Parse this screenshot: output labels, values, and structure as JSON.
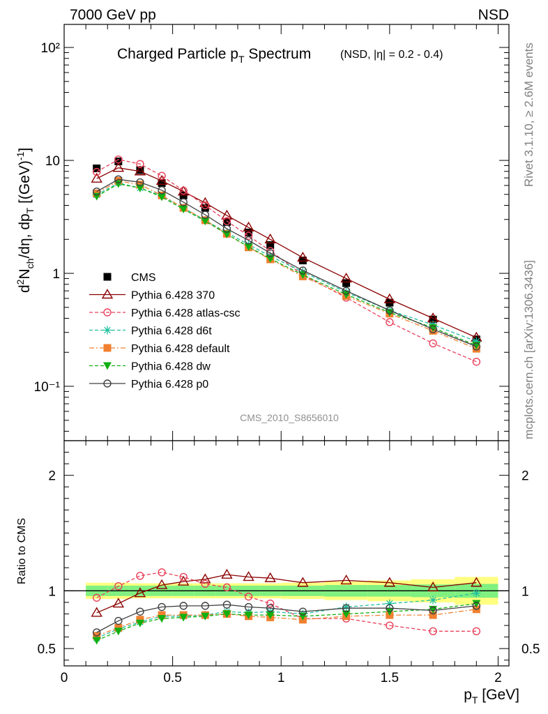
{
  "header": {
    "left": "7000 GeV pp",
    "right": "NSD"
  },
  "side_labels": {
    "top": "Rivet 3.1.10, ≥ 2.6M events",
    "bottom": "mcplots.cern.ch [arXiv:1306.3436]"
  },
  "analysis_id": "CMS_2010_S8656010",
  "chart_data": [
    {
      "type": "line",
      "panel": "main",
      "title": "Charged Particle p",
      "title_sub": "T",
      "title_tail": " Spectrum",
      "subtitle": "(NSD, |η| = 0.2 - 0.4)",
      "ylabel": "d²N_ch/dη, dp_T [(GeV)⁻¹]",
      "yscale": "log",
      "ylim": [
        0.033,
        160
      ],
      "xlim": [
        0,
        2.05
      ],
      "ytick_labels": [
        "10⁻¹",
        "1",
        "10",
        "10²"
      ],
      "x": [
        0.15,
        0.25,
        0.35,
        0.45,
        0.55,
        0.65,
        0.75,
        0.85,
        0.95,
        1.1,
        1.3,
        1.5,
        1.7,
        1.9
      ],
      "series": [
        {
          "name": "CMS",
          "color": "#000000",
          "marker": "square-filled",
          "style": "none",
          "values": [
            8.5,
            9.8,
            8.2,
            6.3,
            4.9,
            3.8,
            2.85,
            2.3,
            1.78,
            1.3,
            0.82,
            0.55,
            0.39,
            0.26
          ]
        },
        {
          "name": "Pythia 6.428 370",
          "color": "#8b0000",
          "marker": "triangle-open",
          "style": "solid",
          "values": [
            6.9,
            8.6,
            8.0,
            6.6,
            5.3,
            4.2,
            3.25,
            2.55,
            2.0,
            1.38,
            0.9,
            0.59,
            0.4,
            0.27
          ]
        },
        {
          "name": "Pythia 6.428 atlas-csc",
          "color": "#e8405a",
          "marker": "circle-open",
          "style": "dashed",
          "values": [
            7.9,
            10.2,
            9.3,
            7.3,
            5.4,
            4.0,
            2.9,
            2.15,
            1.58,
            0.97,
            0.61,
            0.37,
            0.24,
            0.165
          ]
        },
        {
          "name": "Pythia 6.428 d6t",
          "color": "#20c0a0",
          "marker": "star",
          "style": "dashed",
          "values": [
            4.95,
            6.3,
            5.7,
            4.85,
            3.8,
            2.95,
            2.3,
            1.8,
            1.42,
            1.03,
            0.68,
            0.47,
            0.35,
            0.25
          ]
        },
        {
          "name": "Pythia 6.428 default",
          "color": "#f08030",
          "marker": "square-filled",
          "style": "dashdot",
          "values": [
            5.1,
            6.6,
            6.1,
            4.9,
            3.8,
            2.95,
            2.24,
            1.7,
            1.33,
            0.94,
            0.63,
            0.44,
            0.31,
            0.215
          ]
        },
        {
          "name": "Pythia 6.428 dw",
          "color": "#10b010",
          "marker": "triangle-down-filled",
          "style": "dashed",
          "values": [
            4.8,
            6.2,
            5.7,
            4.75,
            3.7,
            2.9,
            2.22,
            1.72,
            1.35,
            0.97,
            0.65,
            0.45,
            0.33,
            0.23
          ]
        },
        {
          "name": "Pythia 6.428 p0",
          "color": "#404040",
          "marker": "circle-open",
          "style": "solid",
          "values": [
            5.3,
            6.8,
            6.4,
            5.45,
            4.27,
            3.3,
            2.48,
            1.96,
            1.51,
            1.06,
            0.7,
            0.47,
            0.32,
            0.225
          ]
        }
      ]
    },
    {
      "type": "line",
      "panel": "ratio",
      "ylabel": "Ratio to CMS",
      "xlabel": "p_T [GeV]",
      "ylim": [
        0.35,
        2.3
      ],
      "xlim": [
        0,
        2.05
      ],
      "xticks": [
        0,
        0.5,
        1,
        1.5,
        2
      ],
      "xtick_labels": [
        "0",
        "0.5",
        "1",
        "1.5",
        "2"
      ],
      "yticks": [
        0.5,
        1,
        2
      ],
      "ytick_labels": [
        "0.5",
        "1",
        "2"
      ],
      "x": [
        0.15,
        0.25,
        0.35,
        0.45,
        0.55,
        0.65,
        0.75,
        0.85,
        0.95,
        1.1,
        1.3,
        1.5,
        1.7,
        1.9
      ],
      "bands": {
        "edges": [
          0.1,
          0.2,
          0.3,
          0.4,
          0.5,
          0.6,
          0.7,
          0.8,
          0.9,
          1.0,
          1.2,
          1.4,
          1.6,
          1.8,
          2.0
        ],
        "yellow_halfwidth": [
          0.07,
          0.07,
          0.065,
          0.065,
          0.065,
          0.065,
          0.065,
          0.065,
          0.065,
          0.07,
          0.08,
          0.09,
          0.1,
          0.12
        ],
        "green_halfwidth": [
          0.045,
          0.045,
          0.045,
          0.045,
          0.045,
          0.045,
          0.045,
          0.045,
          0.045,
          0.045,
          0.05,
          0.05,
          0.055,
          0.06
        ],
        "yellow_color": "#ffff80",
        "green_color": "#80f080"
      },
      "series": [
        {
          "name": "Pythia 6.428 370",
          "color": "#8b0000",
          "marker": "triangle-open",
          "style": "solid",
          "values": [
            0.81,
            0.89,
            0.98,
            1.05,
            1.08,
            1.1,
            1.14,
            1.12,
            1.11,
            1.07,
            1.09,
            1.07,
            1.03,
            1.07
          ]
        },
        {
          "name": "Pythia 6.428 atlas-csc",
          "color": "#e8405a",
          "marker": "circle-open",
          "style": "dashed",
          "values": [
            0.94,
            1.04,
            1.13,
            1.16,
            1.12,
            1.06,
            1.03,
            0.95,
            0.89,
            0.76,
            0.76,
            0.7,
            0.65,
            0.65
          ]
        },
        {
          "name": "Pythia 6.428 d6t",
          "color": "#20c0a0",
          "marker": "star",
          "style": "dashed",
          "values": [
            0.59,
            0.67,
            0.73,
            0.78,
            0.78,
            0.79,
            0.82,
            0.81,
            0.82,
            0.8,
            0.86,
            0.89,
            0.92,
            0.98
          ]
        },
        {
          "name": "Pythia 6.428 default",
          "color": "#f08030",
          "marker": "square-filled",
          "style": "dashdot",
          "values": [
            0.61,
            0.68,
            0.75,
            0.79,
            0.79,
            0.79,
            0.8,
            0.78,
            0.77,
            0.75,
            0.78,
            0.79,
            0.79,
            0.84
          ]
        },
        {
          "name": "Pythia 6.428 dw",
          "color": "#10b010",
          "marker": "triangle-down-filled",
          "style": "dashed",
          "values": [
            0.57,
            0.65,
            0.72,
            0.76,
            0.77,
            0.78,
            0.8,
            0.79,
            0.79,
            0.78,
            0.8,
            0.82,
            0.84,
            0.89
          ]
        },
        {
          "name": "Pythia 6.428 p0",
          "color": "#404040",
          "marker": "circle-open",
          "style": "solid",
          "values": [
            0.64,
            0.74,
            0.82,
            0.86,
            0.87,
            0.87,
            0.88,
            0.86,
            0.85,
            0.82,
            0.85,
            0.85,
            0.83,
            0.87
          ]
        }
      ]
    }
  ]
}
